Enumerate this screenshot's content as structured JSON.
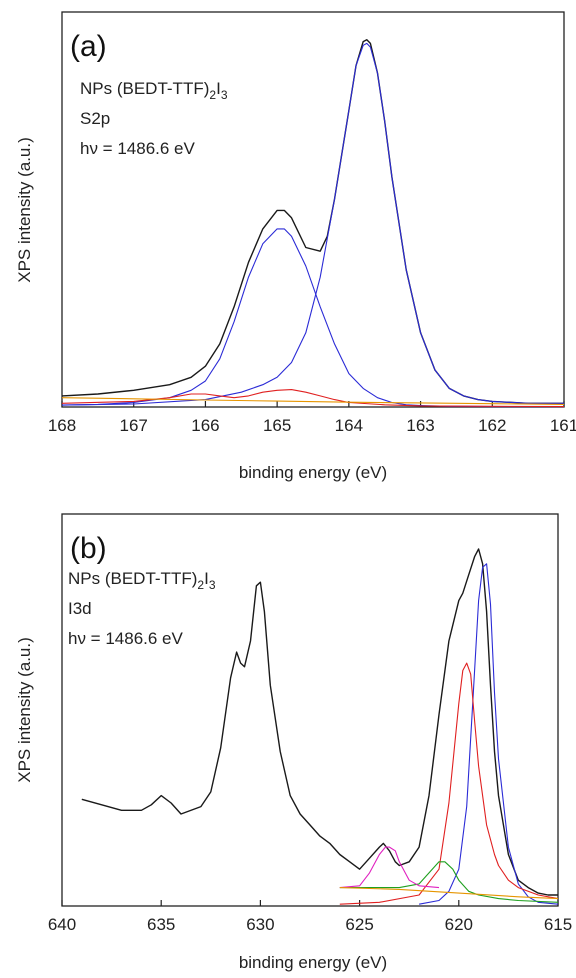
{
  "chart_data": [
    {
      "type": "line",
      "panel_label": "(a)",
      "annotation": {
        "compound_prefix": "NPs (BEDT-TTF)",
        "compound_sub1": "2",
        "compound_mid": "I",
        "compound_sub2": "3",
        "core_level": "S2p",
        "photon_energy": "hν = 1486.6 eV"
      },
      "xlabel": "binding energy (eV)",
      "ylabel": "XPS intensity (a.u.)",
      "xlim": [
        168,
        161
      ],
      "ylim": [
        0,
        1.0
      ],
      "x_ticks": [
        "168",
        "167",
        "166",
        "165",
        "164",
        "163",
        "162",
        "161"
      ],
      "series": [
        {
          "color": "#1a1a1a",
          "x": [
            168.0,
            167.5,
            167.0,
            166.5,
            166.2,
            166.0,
            165.8,
            165.6,
            165.4,
            165.2,
            165.0,
            164.9,
            164.8,
            164.6,
            164.4,
            164.3,
            164.2,
            164.0,
            163.9,
            163.8,
            163.75,
            163.7,
            163.6,
            163.5,
            163.4,
            163.2,
            163.0,
            162.8,
            162.6,
            162.4,
            162.2,
            162.0,
            161.5,
            161.0
          ],
          "y": [
            0.03,
            0.035,
            0.045,
            0.06,
            0.08,
            0.11,
            0.17,
            0.27,
            0.39,
            0.48,
            0.53,
            0.53,
            0.51,
            0.43,
            0.42,
            0.46,
            0.56,
            0.8,
            0.92,
            0.985,
            0.99,
            0.98,
            0.9,
            0.77,
            0.62,
            0.37,
            0.2,
            0.1,
            0.05,
            0.03,
            0.02,
            0.015,
            0.01,
            0.01
          ]
        },
        {
          "color": "#2b2bd6",
          "x": [
            168.0,
            167.5,
            167.0,
            166.5,
            166.2,
            166.0,
            165.8,
            165.6,
            165.4,
            165.2,
            165.0,
            164.9,
            164.8,
            164.6,
            164.4,
            164.2,
            164.0,
            163.8,
            163.6,
            163.4,
            163.2,
            163.0,
            162.8,
            162.6,
            162.4,
            162.0,
            161.5,
            161.0
          ],
          "y": [
            0.005,
            0.007,
            0.012,
            0.025,
            0.045,
            0.07,
            0.13,
            0.23,
            0.35,
            0.44,
            0.48,
            0.48,
            0.46,
            0.38,
            0.27,
            0.17,
            0.09,
            0.05,
            0.025,
            0.012,
            0.006,
            0.004,
            0.003,
            0.002,
            0.002,
            0.001,
            0.001,
            0.001
          ]
        },
        {
          "color": "#2b2bd6",
          "x": [
            168.0,
            167.0,
            166.0,
            165.5,
            165.2,
            165.0,
            164.8,
            164.6,
            164.4,
            164.2,
            164.0,
            163.9,
            163.8,
            163.75,
            163.7,
            163.6,
            163.5,
            163.4,
            163.2,
            163.0,
            162.8,
            162.6,
            162.4,
            162.2,
            162.0,
            161.5,
            161.0
          ],
          "y": [
            0.005,
            0.008,
            0.02,
            0.04,
            0.06,
            0.08,
            0.12,
            0.2,
            0.35,
            0.56,
            0.8,
            0.92,
            0.975,
            0.98,
            0.97,
            0.9,
            0.77,
            0.62,
            0.37,
            0.2,
            0.1,
            0.05,
            0.03,
            0.02,
            0.015,
            0.01,
            0.01
          ]
        },
        {
          "color": "#e02020",
          "x": [
            168.0,
            167.0,
            166.5,
            166.2,
            166.0,
            165.8,
            165.6,
            165.4,
            165.2,
            165.0,
            164.8,
            164.6,
            164.4,
            164.2,
            164.0,
            163.5,
            163.0,
            162.0,
            161.0
          ],
          "y": [
            0.01,
            0.015,
            0.025,
            0.035,
            0.035,
            0.03,
            0.025,
            0.03,
            0.04,
            0.045,
            0.047,
            0.04,
            0.03,
            0.02,
            0.012,
            0.006,
            0.003,
            0.002,
            0.001
          ]
        },
        {
          "color": "#e69500",
          "x": [
            168.0,
            167.0,
            166.0,
            165.0,
            164.0,
            163.0,
            162.0,
            161.0
          ],
          "y": [
            0.025,
            0.022,
            0.019,
            0.016,
            0.013,
            0.011,
            0.009,
            0.007
          ]
        }
      ]
    },
    {
      "type": "line",
      "panel_label": "(b)",
      "annotation": {
        "compound_prefix": "NPs (BEDT-TTF)",
        "compound_sub1": "2",
        "compound_mid": "I",
        "compound_sub2": "3",
        "core_level": "I3d",
        "photon_energy": "hν = 1486.6 eV"
      },
      "xlabel": "binding energy (eV)",
      "ylabel": "XPS intensity (a.u.)",
      "xlim": [
        640,
        615
      ],
      "ylim": [
        0,
        1.0
      ],
      "x_ticks": [
        "640",
        "635",
        "630",
        "625",
        "620",
        "615"
      ],
      "series": [
        {
          "color": "#1a1a1a",
          "x": [
            639.0,
            638.0,
            637.0,
            636.0,
            635.5,
            635.0,
            634.5,
            634.0,
            633.0,
            632.5,
            632.0,
            631.5,
            631.2,
            631.0,
            630.8,
            630.5,
            630.2,
            630.0,
            629.8,
            629.5,
            629.0,
            628.5,
            628.0,
            627.5,
            627.0,
            626.5,
            626.0,
            625.5,
            625.0,
            624.5,
            624.0,
            623.8,
            623.5,
            623.2,
            623.0,
            622.5,
            622.0,
            621.5,
            621.0,
            620.5,
            620.0,
            619.8,
            619.5,
            619.2,
            619.0,
            618.8,
            618.6,
            618.4,
            618.2,
            618.0,
            617.5,
            617.0,
            616.5,
            616.0,
            615.5,
            615.0
          ],
          "y": [
            0.29,
            0.275,
            0.26,
            0.26,
            0.275,
            0.3,
            0.28,
            0.25,
            0.27,
            0.31,
            0.43,
            0.62,
            0.69,
            0.66,
            0.65,
            0.72,
            0.87,
            0.88,
            0.8,
            0.6,
            0.42,
            0.3,
            0.25,
            0.22,
            0.19,
            0.17,
            0.14,
            0.12,
            0.1,
            0.13,
            0.16,
            0.17,
            0.15,
            0.12,
            0.11,
            0.12,
            0.16,
            0.3,
            0.52,
            0.72,
            0.83,
            0.85,
            0.9,
            0.95,
            0.97,
            0.93,
            0.8,
            0.6,
            0.42,
            0.3,
            0.14,
            0.07,
            0.05,
            0.035,
            0.03,
            0.03
          ]
        },
        {
          "color": "#2b2bd6",
          "x": [
            622.0,
            621.0,
            620.5,
            620.0,
            619.6,
            619.3,
            619.0,
            618.8,
            618.6,
            618.4,
            618.2,
            618.0,
            617.5,
            617.0,
            616.5,
            616.0,
            615.0
          ],
          "y": [
            0.005,
            0.015,
            0.04,
            0.1,
            0.27,
            0.55,
            0.83,
            0.92,
            0.93,
            0.82,
            0.58,
            0.4,
            0.16,
            0.06,
            0.025,
            0.01,
            0.005
          ]
        },
        {
          "color": "#e02020",
          "x": [
            626.0,
            624.0,
            622.0,
            621.0,
            620.5,
            620.0,
            619.8,
            619.6,
            619.4,
            619.2,
            619.0,
            618.6,
            618.2,
            618.0,
            617.5,
            617.0,
            616.0,
            615.0
          ],
          "y": [
            0.005,
            0.01,
            0.03,
            0.1,
            0.28,
            0.55,
            0.64,
            0.66,
            0.63,
            0.5,
            0.38,
            0.22,
            0.14,
            0.11,
            0.07,
            0.05,
            0.03,
            0.02
          ]
        },
        {
          "color": "#1fa01f",
          "x": [
            626.0,
            623.0,
            622.0,
            621.5,
            621.0,
            620.7,
            620.3,
            620.0,
            619.5,
            619.0,
            618.0,
            617.0,
            615.0
          ],
          "y": [
            0.05,
            0.05,
            0.06,
            0.09,
            0.12,
            0.12,
            0.1,
            0.07,
            0.04,
            0.03,
            0.02,
            0.015,
            0.01
          ]
        },
        {
          "color": "#e020c0",
          "x": [
            626.0,
            625.0,
            624.5,
            624.0,
            623.7,
            623.5,
            623.2,
            623.0,
            622.5,
            622.0,
            621.0
          ],
          "y": [
            0.05,
            0.055,
            0.09,
            0.14,
            0.16,
            0.16,
            0.15,
            0.12,
            0.07,
            0.055,
            0.05
          ]
        },
        {
          "color": "#e69500",
          "x": [
            626.0,
            623.0,
            620.0,
            617.0,
            615.0
          ],
          "y": [
            0.05,
            0.045,
            0.035,
            0.025,
            0.02
          ]
        }
      ]
    }
  ]
}
